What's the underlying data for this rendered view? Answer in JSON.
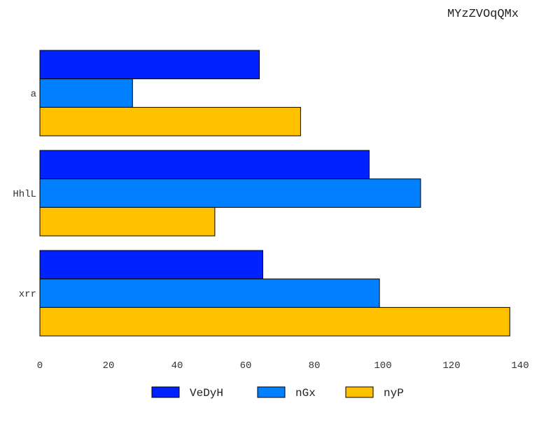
{
  "chart_data": {
    "type": "bar",
    "orientation": "horizontal",
    "title": "MYzZVOqQMx",
    "xlabel": "",
    "ylabel": "",
    "categories": [
      "a",
      "HhlL",
      "xrr"
    ],
    "series": [
      {
        "name": "VeDyH",
        "color": "#0022ff",
        "values": [
          64,
          96,
          65
        ]
      },
      {
        "name": "nGx",
        "color": "#0080ff",
        "values": [
          27,
          111,
          99
        ]
      },
      {
        "name": "nyP",
        "color": "#ffc000",
        "values": [
          76,
          51,
          137
        ]
      }
    ],
    "xlim": [
      0,
      140
    ],
    "xticks": [
      0,
      20,
      40,
      60,
      80,
      100,
      120,
      140
    ],
    "grid": false,
    "legend_position": "bottom"
  }
}
